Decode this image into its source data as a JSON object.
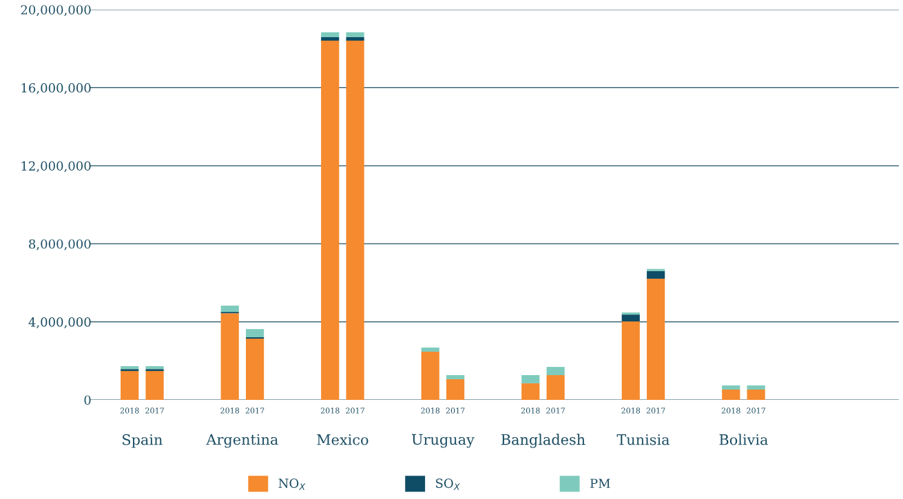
{
  "chart_data": {
    "type": "bar",
    "stacked": true,
    "categories": [
      "2018",
      "2017",
      null,
      null,
      "2018",
      "2017",
      null,
      null,
      "2018",
      "2017",
      null,
      null,
      "2018",
      "2017",
      null,
      null,
      "2018",
      "2017",
      null,
      null,
      "2018",
      "2017",
      null,
      null,
      "2018",
      "2017"
    ],
    "annotations": [
      "Spain",
      "Argentina",
      "Mexico",
      "Uruguay",
      "Bangladesh",
      "Tunisia",
      "Bolivia"
    ],
    "series": [
      {
        "name": "NO$_{X}$",
        "color": "#f58a2e",
        "values": [
          1480000,
          1480000,
          null,
          null,
          4440000,
          3140000,
          null,
          null,
          18410000,
          18410000,
          null,
          null,
          2470000,
          1060000,
          null,
          null,
          850000,
          1270000,
          null,
          null,
          4020000,
          6210000,
          null,
          null,
          530000,
          530000
        ]
      },
      {
        "name": "SO$_{X}$",
        "color": "#0f4c66",
        "values": [
          100000,
          100000,
          null,
          null,
          70000,
          70000,
          null,
          null,
          180000,
          180000,
          null,
          null,
          0,
          0,
          null,
          null,
          0,
          0,
          null,
          null,
          350000,
          390000,
          null,
          null,
          0,
          0
        ]
      },
      {
        "name": "PM",
        "color": "#7ecbbd",
        "values": [
          150000,
          150000,
          null,
          null,
          320000,
          420000,
          null,
          null,
          250000,
          250000,
          null,
          null,
          210000,
          210000,
          null,
          null,
          420000,
          420000,
          null,
          null,
          110000,
          110000,
          null,
          null,
          210000,
          210000
        ]
      }
    ],
    "ylim": [
      0,
      20000000
    ],
    "yticks": [
      {
        "value": 0,
        "label": "0"
      },
      {
        "value": 4000000,
        "label": "4,000,000"
      },
      {
        "value": 8000000,
        "label": "8,000,000"
      },
      {
        "value": 12000000,
        "label": "12,000,000"
      },
      {
        "value": 16000000,
        "label": "16,000,000"
      },
      {
        "value": 20000000,
        "label": "20,000,000"
      }
    ],
    "grid": "y",
    "legend": "bottom"
  }
}
